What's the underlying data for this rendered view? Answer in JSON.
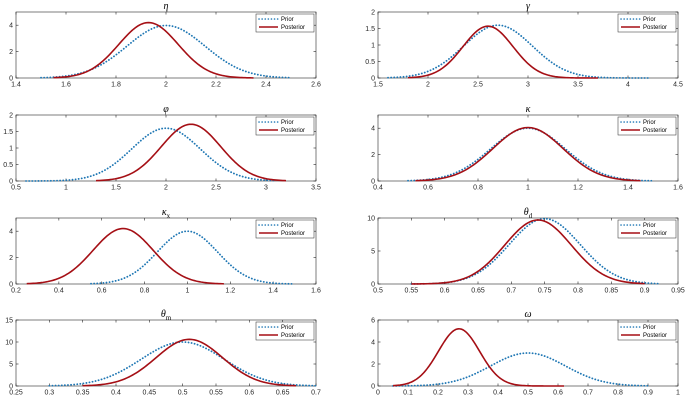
{
  "chart_data": [
    {
      "type": "line",
      "title": "η",
      "xlim": [
        1.4,
        2.6
      ],
      "ylim": [
        0,
        5
      ],
      "xticks": [
        "1.4",
        "1.6",
        "1.8",
        "2",
        "2.2",
        "2.4",
        "2.6"
      ],
      "yticks": [
        "0",
        "2",
        "4"
      ],
      "legend": [
        "Prior",
        "Posterior"
      ],
      "series": [
        {
          "name": "Prior",
          "style": "dotted",
          "color": "#1f77b4",
          "range": [
            1.5,
            2.5
          ],
          "peak_x": 2.0,
          "peak_y": 3.98
        },
        {
          "name": "Posterior",
          "style": "solid",
          "color": "#a50f15",
          "range": [
            1.55,
            2.35
          ],
          "peak_x": 1.93,
          "peak_y": 4.2
        }
      ]
    },
    {
      "type": "line",
      "title": "γ",
      "xlim": [
        1.5,
        4.5
      ],
      "ylim": [
        0,
        2
      ],
      "xticks": [
        "1.5",
        "2",
        "2.5",
        "3",
        "3.5",
        "4",
        "4.5"
      ],
      "yticks": [
        "0",
        "0.5",
        "1",
        "1.5",
        "2"
      ],
      "legend": [
        "Prior",
        "Posterior"
      ],
      "series": [
        {
          "name": "Prior",
          "style": "dotted",
          "color": "#1f77b4",
          "range": [
            1.6,
            4.2
          ],
          "peak_x": 2.7,
          "peak_y": 1.6
        },
        {
          "name": "Posterior",
          "style": "solid",
          "color": "#a50f15",
          "range": [
            1.8,
            3.7
          ],
          "peak_x": 2.6,
          "peak_y": 1.57
        }
      ]
    },
    {
      "type": "line",
      "title": "φ",
      "xlim": [
        0.5,
        3.5
      ],
      "ylim": [
        0,
        2
      ],
      "xticks": [
        "0.5",
        "1",
        "1.5",
        "2",
        "2.5",
        "3",
        "3.5"
      ],
      "yticks": [
        "0",
        "0.5",
        "1",
        "1.5",
        "2"
      ],
      "legend": [
        "Prior",
        "Posterior"
      ],
      "series": [
        {
          "name": "Prior",
          "style": "dotted",
          "color": "#1f77b4",
          "range": [
            0.6,
            3.1
          ],
          "peak_x": 2.0,
          "peak_y": 1.6
        },
        {
          "name": "Posterior",
          "style": "solid",
          "color": "#a50f15",
          "range": [
            1.3,
            3.2
          ],
          "peak_x": 2.25,
          "peak_y": 1.72
        }
      ]
    },
    {
      "type": "line",
      "title": "κ",
      "xlim": [
        0.4,
        1.6
      ],
      "ylim": [
        0,
        5
      ],
      "xticks": [
        "0.4",
        "0.6",
        "0.8",
        "1",
        "1.2",
        "1.4",
        "1.6"
      ],
      "yticks": [
        "0",
        "2",
        "4"
      ],
      "legend": [
        "Prior",
        "Posterior"
      ],
      "series": [
        {
          "name": "Prior",
          "style": "dotted",
          "color": "#1f77b4",
          "range": [
            0.52,
            1.5
          ],
          "peak_x": 1.0,
          "peak_y": 4.0
        },
        {
          "name": "Posterior",
          "style": "solid",
          "color": "#a50f15",
          "range": [
            0.55,
            1.45
          ],
          "peak_x": 1.0,
          "peak_y": 4.05
        }
      ]
    },
    {
      "type": "line",
      "title": "κ",
      "title_sub": "x",
      "xlim": [
        0.2,
        1.6
      ],
      "ylim": [
        0,
        5
      ],
      "xticks": [
        "0.2",
        "0.4",
        "0.6",
        "0.8",
        "1",
        "1.2",
        "1.4",
        "1.6"
      ],
      "yticks": [
        "0",
        "2",
        "4"
      ],
      "legend": [
        "Prior",
        "Posterior"
      ],
      "series": [
        {
          "name": "Prior",
          "style": "dotted",
          "color": "#1f77b4",
          "range": [
            0.55,
            1.5
          ],
          "peak_x": 1.0,
          "peak_y": 4.0
        },
        {
          "name": "Posterior",
          "style": "solid",
          "color": "#a50f15",
          "range": [
            0.25,
            1.17
          ],
          "peak_x": 0.7,
          "peak_y": 4.2
        }
      ]
    },
    {
      "type": "line",
      "title": "θ",
      "title_sub": "d",
      "xlim": [
        0.5,
        0.95
      ],
      "ylim": [
        0,
        10
      ],
      "xticks": [
        "0.5",
        "0.55",
        "0.6",
        "0.65",
        "0.7",
        "0.75",
        "0.8",
        "0.85",
        "0.9",
        "0.95"
      ],
      "yticks": [
        "0",
        "5",
        "10"
      ],
      "legend": [
        "Prior",
        "Posterior"
      ],
      "series": [
        {
          "name": "Prior",
          "style": "dotted",
          "color": "#1f77b4",
          "range": [
            0.55,
            0.92
          ],
          "peak_x": 0.75,
          "peak_y": 9.9
        },
        {
          "name": "Posterior",
          "style": "solid",
          "color": "#a50f15",
          "range": [
            0.55,
            0.9
          ],
          "peak_x": 0.74,
          "peak_y": 9.7
        }
      ]
    },
    {
      "type": "line",
      "title": "θ",
      "title_sub": "m",
      "xlim": [
        0.25,
        0.7
      ],
      "ylim": [
        0,
        15
      ],
      "xticks": [
        "0.25",
        "0.3",
        "0.35",
        "0.4",
        "0.45",
        "0.5",
        "0.55",
        "0.6",
        "0.65",
        "0.7"
      ],
      "yticks": [
        "0",
        "5",
        "10",
        "15"
      ],
      "legend": [
        "Prior",
        "Posterior"
      ],
      "series": [
        {
          "name": "Prior",
          "style": "dotted",
          "color": "#1f77b4",
          "range": [
            0.3,
            0.7
          ],
          "peak_x": 0.5,
          "peak_y": 10.0
        },
        {
          "name": "Posterior",
          "style": "solid",
          "color": "#a50f15",
          "range": [
            0.35,
            0.67
          ],
          "peak_x": 0.51,
          "peak_y": 10.6
        }
      ]
    },
    {
      "type": "line",
      "title": "ω",
      "xlim": [
        0,
        1
      ],
      "ylim": [
        0,
        6
      ],
      "xticks": [
        "0",
        "0.1",
        "0.2",
        "0.3",
        "0.4",
        "0.5",
        "0.6",
        "0.7",
        "0.8",
        "0.9",
        "1"
      ],
      "yticks": [
        "0",
        "2",
        "4",
        "6"
      ],
      "legend": [
        "Prior",
        "Posterior"
      ],
      "series": [
        {
          "name": "Prior",
          "style": "dotted",
          "color": "#1f77b4",
          "range": [
            0.05,
            0.9
          ],
          "peak_x": 0.5,
          "peak_y": 3.0
        },
        {
          "name": "Posterior",
          "style": "solid",
          "color": "#a50f15",
          "range": [
            0.05,
            0.62
          ],
          "peak_x": 0.27,
          "peak_y": 5.2
        }
      ]
    }
  ]
}
